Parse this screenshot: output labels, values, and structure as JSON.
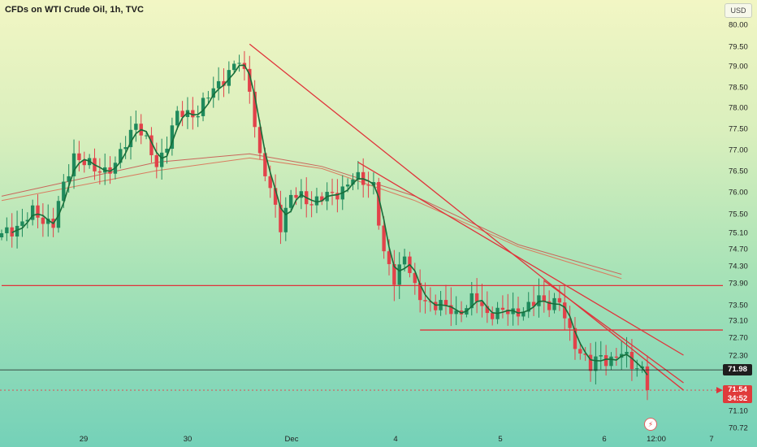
{
  "header": {
    "title": "CFDs on WTI Crude Oil, 1h, TVC",
    "currency": "USD"
  },
  "price_tags": {
    "last_close": "71.98",
    "current": "71.54",
    "countdown": "34:52"
  },
  "colors": {
    "up": "#1f8a5c",
    "down": "#e2424a",
    "ma_line": "#176e3a",
    "long_ma_1": "#d97d60",
    "long_ma_2": "#c9665b",
    "trendline": "#e0333a",
    "level_line": "#e0333a",
    "last_line": "#1e1e1e"
  },
  "chart_data": {
    "type": "candlestick",
    "title": "CFDs on WTI Crude Oil, 1h, TVC",
    "ylim": [
      70.72,
      80.0
    ],
    "y_ticks": [
      "80.00",
      "79.50",
      "79.00",
      "78.50",
      "78.00",
      "77.50",
      "77.00",
      "76.50",
      "76.00",
      "75.50",
      "75.10",
      "74.70",
      "74.30",
      "73.90",
      "73.50",
      "73.10",
      "72.70",
      "72.30",
      "71.10",
      "70.72"
    ],
    "x_ticks": [
      "29",
      "30",
      "Dec",
      "4",
      "5",
      "6",
      "12:00",
      "7"
    ],
    "anchors": [
      [
        0,
        75.0
      ],
      [
        6,
        75.5
      ],
      [
        10,
        75.3
      ],
      [
        14,
        76.9
      ],
      [
        18,
        76.5
      ],
      [
        22,
        76.6
      ],
      [
        26,
        77.7
      ],
      [
        30,
        76.6
      ],
      [
        34,
        77.8
      ],
      [
        38,
        77.9
      ],
      [
        42,
        78.6
      ],
      [
        46,
        79.1
      ],
      [
        48,
        78.5
      ],
      [
        50,
        76.8
      ],
      [
        52,
        76.0
      ],
      [
        54,
        75.3
      ],
      [
        56,
        75.9
      ],
      [
        60,
        75.8
      ],
      [
        64,
        75.9
      ],
      [
        68,
        76.3
      ],
      [
        72,
        76.2
      ],
      [
        74,
        74.5
      ],
      [
        76,
        74.0
      ],
      [
        78,
        74.6
      ],
      [
        80,
        73.7
      ],
      [
        82,
        73.6
      ],
      [
        86,
        73.4
      ],
      [
        88,
        73.3
      ],
      [
        92,
        73.6
      ],
      [
        94,
        73.3
      ],
      [
        98,
        73.3
      ],
      [
        102,
        73.4
      ],
      [
        104,
        73.6
      ],
      [
        108,
        73.5
      ],
      [
        110,
        72.8
      ],
      [
        112,
        72.4
      ],
      [
        114,
        72.0
      ],
      [
        116,
        72.3
      ],
      [
        118,
        72.2
      ],
      [
        120,
        72.3
      ],
      [
        124,
        72.0
      ],
      [
        125,
        71.54
      ]
    ],
    "moving_average": [
      [
        0,
        75.9
      ],
      [
        30,
        76.7
      ],
      [
        48,
        76.9
      ],
      [
        62,
        76.6
      ],
      [
        80,
        75.9
      ],
      [
        100,
        74.8
      ],
      [
        120,
        74.1
      ]
    ],
    "long_moving_average": [
      [
        0,
        75.8
      ],
      [
        30,
        76.5
      ],
      [
        48,
        76.8
      ],
      [
        62,
        76.55
      ],
      [
        80,
        75.8
      ],
      [
        100,
        74.75
      ],
      [
        120,
        74.0
      ]
    ],
    "trendlines": [
      {
        "from": [
          48,
          79.55
        ],
        "to": [
          132,
          71.54
        ]
      },
      {
        "from": [
          69,
          76.7
        ],
        "to": [
          132,
          72.3
        ]
      },
      {
        "from": [
          105,
          73.95
        ],
        "to": [
          132,
          71.7
        ]
      }
    ],
    "horizontal_levels": [
      {
        "price": 73.85,
        "from": 0,
        "to": 138
      },
      {
        "price": 72.87,
        "from": 81,
        "to": 138
      }
    ],
    "last_price": 71.98,
    "current_price": 71.54
  }
}
